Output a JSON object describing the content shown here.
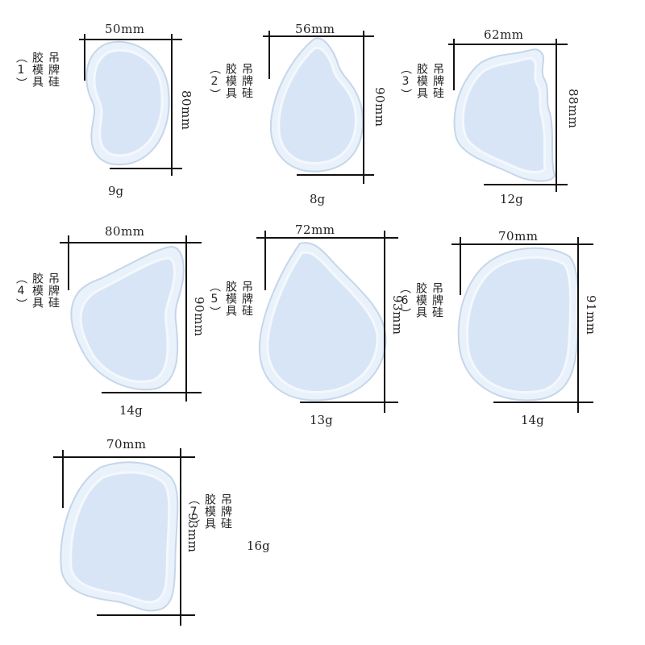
{
  "molds": [
    {
      "name": "吊牌硅胶模具（1）",
      "width": "50mm",
      "height": "80mm",
      "weight": "9g"
    },
    {
      "name": "吊牌硅胶模具（2）",
      "width": "56mm",
      "height": "90mm",
      "weight": "8g"
    },
    {
      "name": "吊牌硅胶模具（3）",
      "width": "62mm",
      "height": "88mm",
      "weight": "12g"
    },
    {
      "name": "吊牌硅胶模具（4）",
      "width": "80mm",
      "height": "90mm",
      "weight": "14g"
    },
    {
      "name": "吊牌硅胶模具（5）",
      "width": "72mm",
      "height": "93mm",
      "weight": "13g"
    },
    {
      "name": "吊牌硅胶模具（6）",
      "width": "70mm",
      "height": "91mm",
      "weight": "14g"
    },
    {
      "name": "吊牌硅胶模具（7）",
      "width": "70mm",
      "height": "93mm",
      "weight": "16g"
    }
  ],
  "colors": {
    "mold_fill": "#dce8f7",
    "mold_rim": "#eef4fc",
    "mold_edge": "#b9cbe3",
    "line": "#111111"
  }
}
